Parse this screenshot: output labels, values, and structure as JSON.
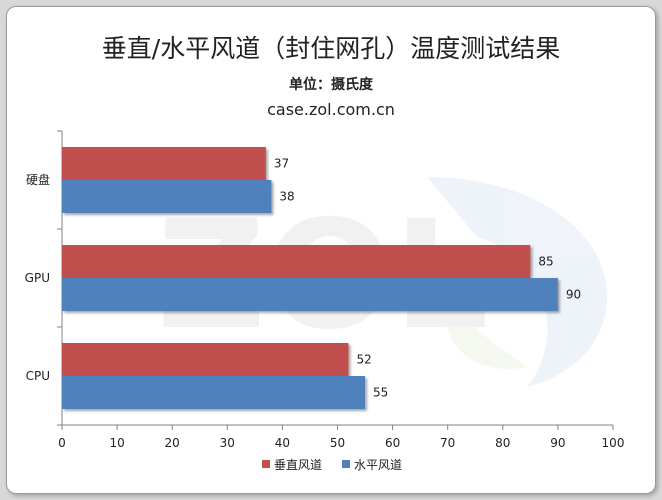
{
  "chart_data": {
    "type": "bar",
    "orientation": "horizontal",
    "title": "垂直/水平风道（封住网孔）温度测试结果",
    "subtitle": "单位：摄氏度",
    "source": "case.zol.com.cn",
    "categories": [
      "硬盘",
      "GPU",
      "CPU"
    ],
    "series": [
      {
        "name": "垂直风道",
        "color": "#c0504d",
        "values": [
          37,
          85,
          52
        ]
      },
      {
        "name": "水平风道",
        "color": "#4f81bd",
        "values": [
          38,
          90,
          55
        ]
      }
    ],
    "xlim": [
      0,
      100
    ],
    "xticks": [
      "0",
      "10",
      "20",
      "30",
      "40",
      "50",
      "60",
      "70",
      "80",
      "90",
      "100"
    ],
    "grid": false,
    "legend_position": "bottom"
  }
}
